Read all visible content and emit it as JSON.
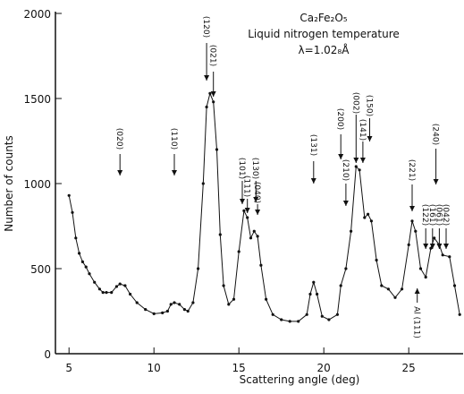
{
  "chart_data": {
    "type": "line",
    "title_lines": [
      "Ca₂Fe₂O₅",
      "Liquid nitrogen temperature",
      "λ=1.02₈Å"
    ],
    "x_label": "Scattering angle (deg)",
    "y_label": "Number of counts",
    "x": [
      5.0,
      5.2,
      5.4,
      5.6,
      5.8,
      6.0,
      6.2,
      6.5,
      6.8,
      7.0,
      7.2,
      7.5,
      7.8,
      8.0,
      8.3,
      8.6,
      9.0,
      9.5,
      10.0,
      10.5,
      10.8,
      11.0,
      11.2,
      11.5,
      11.8,
      12.0,
      12.3,
      12.6,
      12.9,
      13.1,
      13.3,
      13.5,
      13.7,
      13.9,
      14.1,
      14.4,
      14.7,
      15.0,
      15.3,
      15.5,
      15.7,
      15.9,
      16.1,
      16.3,
      16.6,
      17.0,
      17.5,
      18.0,
      18.5,
      19.0,
      19.2,
      19.4,
      19.6,
      19.9,
      20.3,
      20.8,
      21.0,
      21.3,
      21.6,
      21.9,
      22.1,
      22.4,
      22.6,
      22.8,
      23.1,
      23.4,
      23.8,
      24.2,
      24.6,
      25.0,
      25.2,
      25.4,
      25.7,
      26.0,
      26.3,
      26.5,
      26.8,
      27.0,
      27.4,
      27.7,
      28.0
    ],
    "values": [
      930,
      830,
      680,
      590,
      540,
      510,
      470,
      420,
      380,
      360,
      360,
      360,
      395,
      410,
      400,
      350,
      300,
      260,
      235,
      240,
      250,
      290,
      300,
      290,
      260,
      250,
      300,
      500,
      1000,
      1450,
      1530,
      1480,
      1200,
      700,
      400,
      290,
      320,
      600,
      840,
      800,
      680,
      720,
      690,
      520,
      320,
      230,
      200,
      190,
      190,
      230,
      350,
      420,
      350,
      220,
      200,
      230,
      400,
      500,
      720,
      1100,
      1080,
      800,
      820,
      780,
      550,
      400,
      380,
      330,
      380,
      640,
      780,
      720,
      500,
      450,
      620,
      680,
      640,
      580,
      570,
      400,
      230
    ],
    "color": "#111111",
    "xlim": [
      4.2,
      28.2
    ],
    "ylim": [
      0,
      2000
    ],
    "xticks": [
      5,
      10,
      15,
      20,
      25
    ],
    "yticks": [
      0,
      500,
      1000,
      1500,
      2000
    ],
    "annotations": [
      {
        "text": "(020)",
        "x": 8.0
      },
      {
        "text": "(110)",
        "x": 11.2
      },
      {
        "text": "(120)",
        "x": 13.1
      },
      {
        "text": "(021)",
        "x": 13.5
      },
      {
        "text": "(101)",
        "x": 15.2
      },
      {
        "text": "(111)",
        "x": 15.5
      },
      {
        "text": "(130)",
        "x": 16.0
      },
      {
        "text": "(040)",
        "x": 16.1
      },
      {
        "text": "(131)",
        "x": 19.4
      },
      {
        "text": "(200)",
        "x": 21.0
      },
      {
        "text": "(210)",
        "x": 21.3
      },
      {
        "text": "(002)",
        "x": 21.9
      },
      {
        "text": "(141)",
        "x": 22.3
      },
      {
        "text": "(150)",
        "x": 22.7
      },
      {
        "text": "(221)",
        "x": 25.2
      },
      {
        "text": "(240)",
        "x": 26.6
      },
      {
        "text": "(122)",
        "x": 26.0
      },
      {
        "text": "(161)",
        "x": 26.4
      },
      {
        "text": "(061)",
        "x": 26.8
      },
      {
        "text": "(042)",
        "x": 27.2
      },
      {
        "text": "Al (111)",
        "x": 25.5
      }
    ]
  }
}
